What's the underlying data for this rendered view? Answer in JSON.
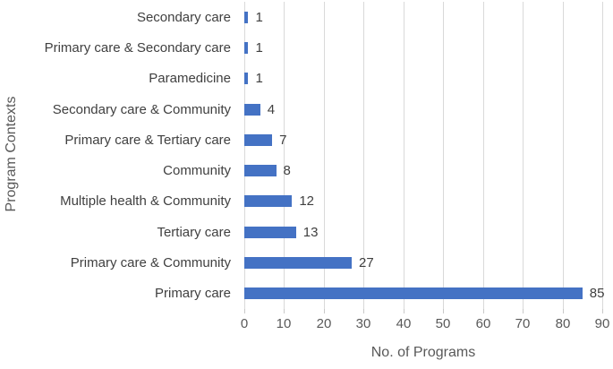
{
  "chart_data": {
    "type": "bar",
    "orientation": "horizontal",
    "title": "",
    "xlabel": "No. of Programs",
    "ylabel": "Program Contexts",
    "categories": [
      "Secondary care",
      "Primary care & Secondary care",
      "Paramedicine",
      "Secondary care & Community",
      "Primary care & Tertiary care",
      "Community",
      "Multiple health & Community",
      "Tertiary care",
      "Primary care & Community",
      "Primary care"
    ],
    "values": [
      1,
      1,
      1,
      4,
      7,
      8,
      12,
      13,
      27,
      85
    ],
    "data_labels": [
      "1",
      "1",
      "1",
      "4",
      "7",
      "8",
      "12",
      "13",
      "27",
      "85"
    ],
    "xlim": [
      0,
      90
    ],
    "xticks": [
      "0",
      "10",
      "20",
      "30",
      "40",
      "50",
      "60",
      "70",
      "80",
      "90"
    ],
    "grid": "vertical-gridlines-on",
    "legend": "none",
    "bar_color": "#4472C4",
    "gridline_color": "#D9D9D9",
    "axis_text_color": "#595959",
    "label_text_color": "#404040"
  }
}
